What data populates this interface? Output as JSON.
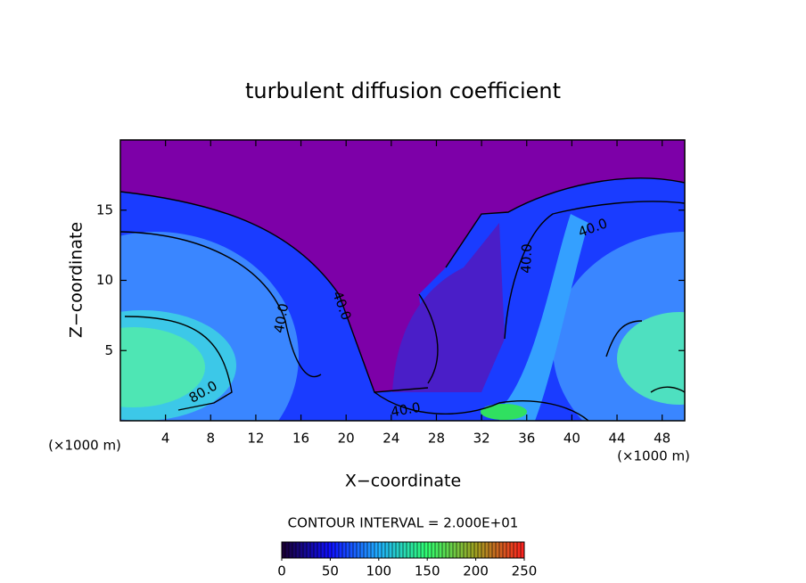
{
  "chart_data": {
    "type": "contour",
    "title": "turbulent diffusion coefficient",
    "xlabel": "X−coordinate",
    "ylabel": "Z−coordinate",
    "x_units": [
      "(×1000 m)",
      "(×1000 m)"
    ],
    "xlim": [
      0,
      50
    ],
    "ylim": [
      0,
      20
    ],
    "xticks": [
      4,
      8,
      12,
      16,
      20,
      24,
      28,
      32,
      36,
      40,
      44,
      48
    ],
    "yticks": [
      5,
      10,
      15
    ],
    "contour_labels": [
      "40.0",
      "40.0",
      "40.0",
      "40.0",
      "80.0",
      "40.0"
    ],
    "contour_interval_label": "CONTOUR INTERVAL = 2.000E+01",
    "clim": [
      0,
      250
    ],
    "cticks": [
      0,
      50,
      100,
      150,
      200,
      250
    ],
    "colormap": [
      "#1a0030",
      "#1010ff",
      "#20b0ff",
      "#30ff70",
      "#a0a020",
      "#ff2020"
    ]
  }
}
